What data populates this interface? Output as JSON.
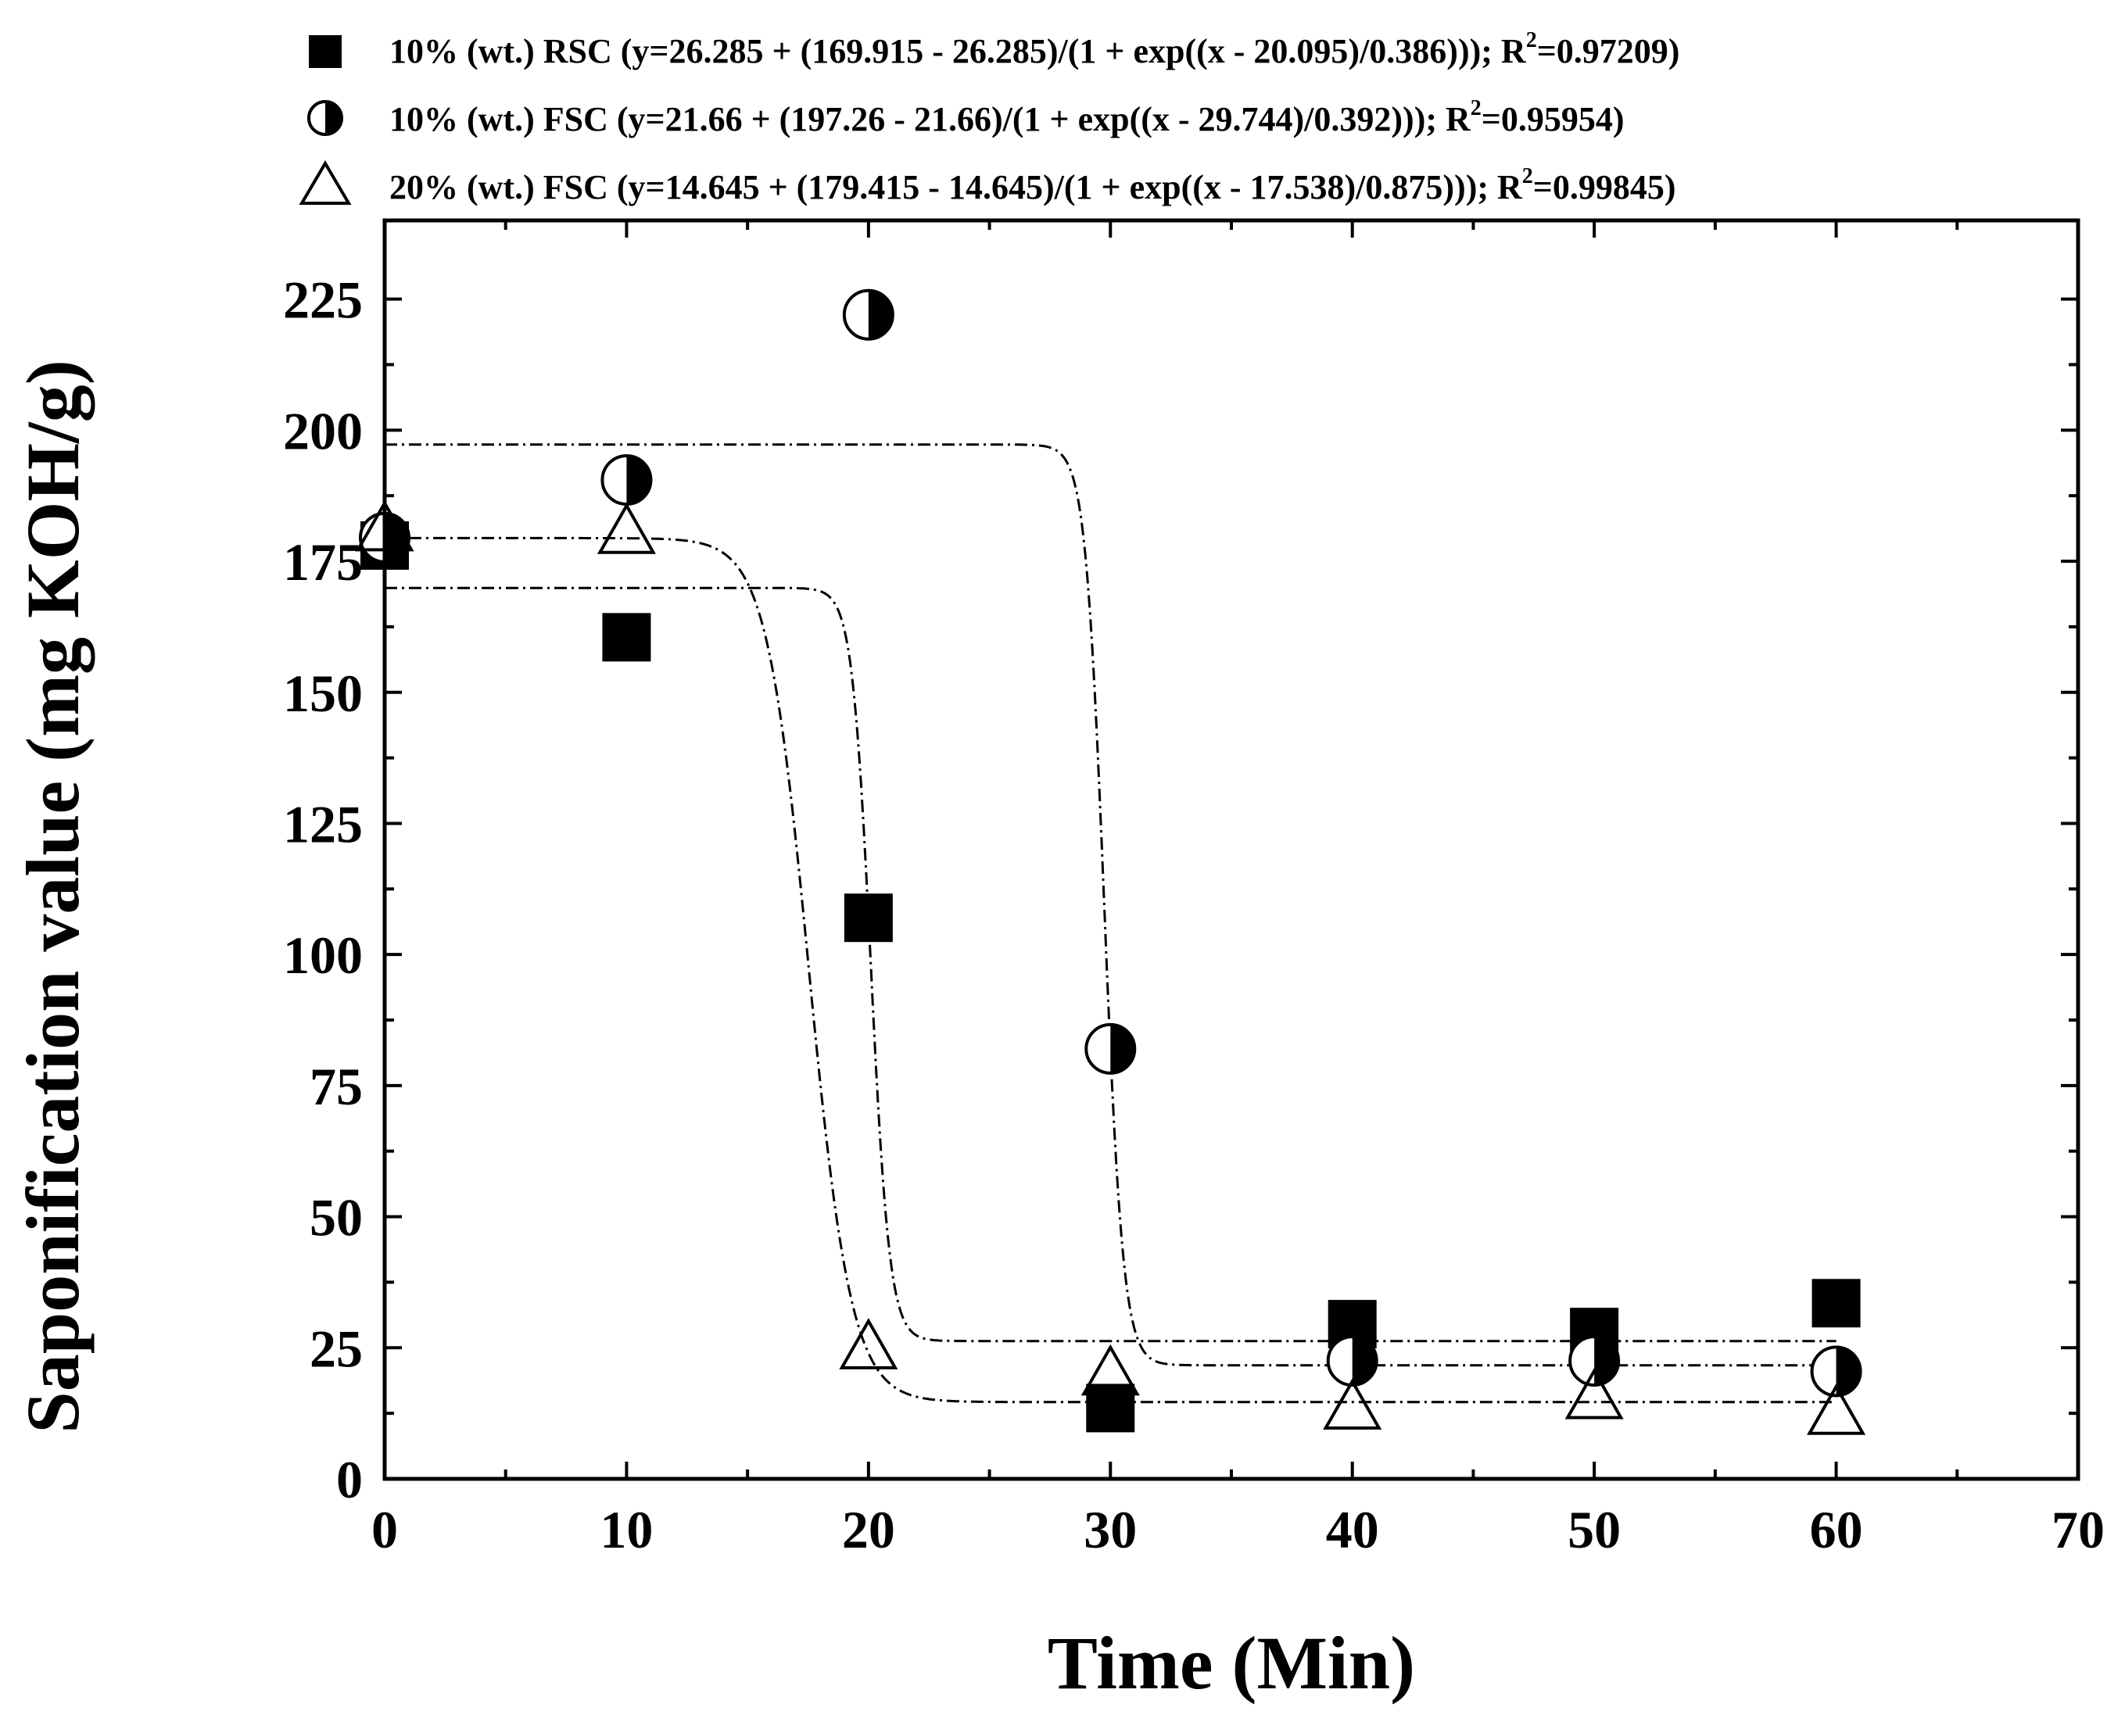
{
  "chart_data": {
    "type": "scatter",
    "title": "",
    "xlabel": "Time (Min)",
    "ylabel": "Saponification value  (mg KOH/g)",
    "xlim": [
      0,
      70
    ],
    "ylim": [
      0,
      240
    ],
    "xticks": [
      0,
      10,
      20,
      30,
      40,
      50,
      60,
      70
    ],
    "yticks": [
      0,
      25,
      50,
      75,
      100,
      125,
      150,
      175,
      200,
      225
    ],
    "grid": false,
    "legend_position": "top",
    "series": [
      {
        "name": "10% (wt.) RSC",
        "marker": "filled-square",
        "equation": "(y=26.285 + (169.915 - 26.285)/(1 + exp((x - 20.095)/0.386))); R",
        "r2_prefix": "=0.97209)",
        "fit": {
          "A1": 169.915,
          "A2": 26.285,
          "x0": 20.095,
          "dx": 0.386
        },
        "x": [
          0,
          10,
          20,
          30,
          40,
          50,
          60
        ],
        "y": [
          178,
          160.5,
          107,
          13.5,
          29.5,
          28,
          33.5
        ]
      },
      {
        "name": "10% (wt.) FSC",
        "marker": "half-filled-circle",
        "equation": "(y=21.66 + (197.26 - 21.66)/(1 + exp((x - 29.744)/0.392))); R",
        "r2_prefix": "=0.95954)",
        "fit": {
          "A1": 197.26,
          "A2": 21.66,
          "x0": 29.744,
          "dx": 0.392
        },
        "x": [
          0,
          10,
          20,
          30,
          40,
          50,
          60
        ],
        "y": [
          179.5,
          190.5,
          222,
          82,
          22.5,
          22.5,
          20.5
        ]
      },
      {
        "name": "20% (wt.) FSC",
        "marker": "open-triangle",
        "equation": "(y=14.645 + (179.415 - 14.645)/(1 + exp((x - 17.538)/0.875))); R",
        "r2_prefix": "=0.99845)",
        "fit": {
          "A1": 179.415,
          "A2": 14.645,
          "x0": 17.538,
          "dx": 0.875
        },
        "x": [
          0,
          10,
          20,
          30,
          40,
          50,
          60
        ],
        "y": [
          181,
          180.5,
          25,
          20,
          13.5,
          15.5,
          12.5
        ]
      }
    ]
  }
}
